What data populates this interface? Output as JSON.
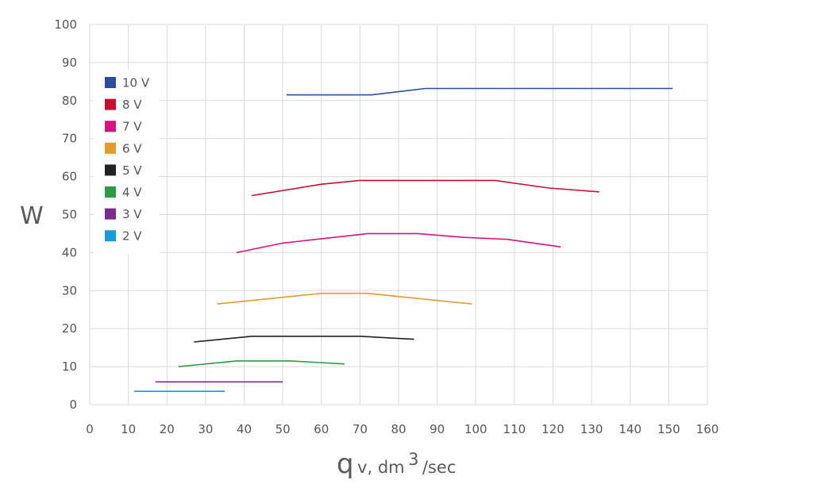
{
  "chart_data": {
    "type": "line",
    "ylabel": "W",
    "xlabel": {
      "main": "q",
      "sub": "v, dm",
      "sup": "3",
      "rest": "/sec"
    },
    "xlim": [
      0,
      160
    ],
    "ylim": [
      0,
      100
    ],
    "x_ticks": [
      "0",
      "10",
      "20",
      "30",
      "40",
      "50",
      "60",
      "70",
      "80",
      "90",
      "100",
      "110",
      "120",
      "130",
      "140",
      "150",
      "160"
    ],
    "y_ticks": [
      "0",
      "10",
      "20",
      "30",
      "40",
      "50",
      "60",
      "70",
      "80",
      "90",
      "100"
    ],
    "grid": true,
    "legend_position": "upper-left",
    "series": [
      {
        "name": "10 V",
        "color": "#2a4d9c",
        "points": [
          [
            51,
            81.5
          ],
          [
            73,
            81.5
          ],
          [
            87,
            83.2
          ],
          [
            151,
            83.2
          ]
        ]
      },
      {
        "name": "8 V",
        "color": "#c8102e",
        "points": [
          [
            42,
            55
          ],
          [
            60,
            58
          ],
          [
            70,
            59
          ],
          [
            105,
            59
          ],
          [
            119,
            57
          ],
          [
            132,
            56
          ]
        ]
      },
      {
        "name": "7 V",
        "color": "#d4147f",
        "points": [
          [
            38,
            40
          ],
          [
            50,
            42.5
          ],
          [
            72,
            45
          ],
          [
            85,
            45
          ],
          [
            97,
            44
          ],
          [
            108,
            43.5
          ],
          [
            122,
            41.5
          ]
        ]
      },
      {
        "name": "6 V",
        "color": "#e59a2e",
        "points": [
          [
            33,
            26.5
          ],
          [
            60,
            29.3
          ],
          [
            72,
            29.3
          ],
          [
            99,
            26.5
          ]
        ]
      },
      {
        "name": "5 V",
        "color": "#222222",
        "points": [
          [
            27,
            16.5
          ],
          [
            42,
            18
          ],
          [
            70,
            18
          ],
          [
            84,
            17.2
          ]
        ]
      },
      {
        "name": "4 V",
        "color": "#2e9a45",
        "points": [
          [
            23,
            10
          ],
          [
            38,
            11.5
          ],
          [
            52,
            11.5
          ],
          [
            66,
            10.7
          ]
        ]
      },
      {
        "name": "3 V",
        "color": "#7b2d8e",
        "points": [
          [
            17,
            6
          ],
          [
            50,
            6
          ]
        ]
      },
      {
        "name": "2 V",
        "color": "#1a9bd7",
        "points": [
          [
            11.5,
            3.5
          ],
          [
            35,
            3.5
          ]
        ]
      }
    ]
  }
}
